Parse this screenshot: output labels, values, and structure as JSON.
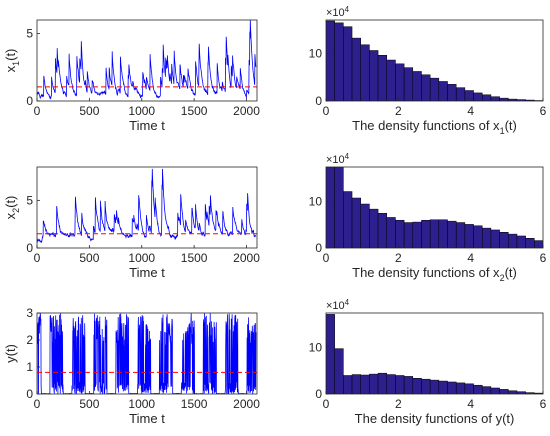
{
  "chart_data": [
    {
      "type": "line",
      "xlabel": "Time t",
      "ylabel": "x",
      "ylabel_sub": "1",
      "ylabel_suffix": "(t)",
      "xlim": [
        0,
        2100
      ],
      "ylim": [
        0,
        6
      ],
      "xticks": [
        "0",
        "500",
        "1000",
        "1500",
        "2000"
      ],
      "xtick_values": [
        0,
        500,
        1000,
        1500,
        2000
      ],
      "yticks": [
        "0",
        "5"
      ],
      "ytick_values": [
        0,
        5
      ],
      "series": [
        {
          "color": "#0000ff",
          "kind": "noisy-path",
          "mean": 1.2,
          "peak": 6,
          "seed": 11,
          "clip_top": true
        },
        {
          "color": "#ff0000",
          "kind": "hline",
          "y": 1.05,
          "dash": true
        }
      ]
    },
    {
      "type": "bar",
      "title": "×10",
      "title_exp": "4",
      "xlabel": "The density functions of x",
      "xlabel_sub": "1",
      "xlabel_suffix": "(t)",
      "xlim": [
        0,
        6
      ],
      "ylim": [
        0,
        17
      ],
      "xticks": [
        "0",
        "2",
        "4",
        "6"
      ],
      "xtick_values": [
        0,
        2,
        4,
        6
      ],
      "yticks": [
        "0",
        "10"
      ],
      "ytick_values": [
        0,
        10
      ],
      "bin_width": 0.24,
      "fill": "#2e1f8f",
      "values": [
        16.8,
        16.4,
        15.6,
        13.2,
        11.8,
        10.6,
        9.6,
        8.6,
        7.8,
        7.0,
        6.2,
        5.5,
        4.8,
        4.1,
        3.5,
        2.8,
        2.2,
        1.7,
        1.3,
        0.9,
        0.6,
        0.4,
        0.3,
        0.2,
        0.1
      ]
    },
    {
      "type": "line",
      "xlabel": "Time t",
      "ylabel": "x",
      "ylabel_sub": "2",
      "ylabel_suffix": "(t)",
      "xlim": [
        0,
        2100
      ],
      "ylim": [
        0,
        8.5
      ],
      "xticks": [
        "0",
        "500",
        "1000",
        "1500",
        "2000"
      ],
      "xtick_values": [
        0,
        500,
        1000,
        1500,
        2000
      ],
      "yticks": [
        "0",
        "5"
      ],
      "ytick_values": [
        0,
        5
      ],
      "series": [
        {
          "color": "#0000ff",
          "kind": "noisy-path",
          "mean": 2.0,
          "peak": 8.3,
          "seed": 23,
          "clip_top": false
        },
        {
          "color": "#ff0000",
          "kind": "hline",
          "y": 1.5,
          "dash": true
        }
      ]
    },
    {
      "type": "bar",
      "title": "×10",
      "title_exp": "4",
      "xlabel": "The density functions of x",
      "xlabel_sub": "2",
      "xlabel_suffix": "(t)",
      "xlim": [
        0,
        6
      ],
      "ylim": [
        0,
        17.5
      ],
      "xticks": [
        "0",
        "2",
        "4",
        "6"
      ],
      "xtick_values": [
        0,
        2,
        4,
        6
      ],
      "yticks": [
        "0",
        "10"
      ],
      "ytick_values": [
        0,
        10
      ],
      "bin_width": 0.24,
      "fill": "#2e1f8f",
      "values": [
        17.5,
        17.5,
        12.2,
        10.8,
        9.5,
        8.4,
        7.5,
        6.6,
        6.0,
        5.5,
        5.6,
        6.0,
        6.1,
        6.1,
        5.8,
        5.5,
        5.1,
        4.8,
        4.3,
        3.9,
        3.4,
        3.0,
        2.6,
        2.1,
        1.6
      ]
    },
    {
      "type": "line",
      "xlabel": "Time t",
      "ylabel": "y(t)",
      "ylabel_sub": "",
      "ylabel_suffix": "",
      "xlim": [
        0,
        2100
      ],
      "ylim": [
        0,
        3
      ],
      "xticks": [
        "0",
        "500",
        "1000",
        "1500",
        "2000"
      ],
      "xtick_values": [
        0,
        500,
        1000,
        1500,
        2000
      ],
      "yticks": [
        "0",
        "1",
        "2",
        "3"
      ],
      "ytick_values": [
        0,
        1,
        2,
        3
      ],
      "series": [
        {
          "color": "#0000ff",
          "kind": "burst-path",
          "peak": 3,
          "seed": 37
        },
        {
          "color": "#ff0000",
          "kind": "hline",
          "y": 0.8,
          "dash": true
        }
      ]
    },
    {
      "type": "bar",
      "title": "×10",
      "title_exp": "4",
      "xlabel": "The density functions of y(t)",
      "xlabel_sub": "",
      "xlabel_suffix": "",
      "xlim": [
        0,
        6
      ],
      "ylim": [
        0,
        17.5
      ],
      "xticks": [
        "0",
        "2",
        "4",
        "6"
      ],
      "xtick_values": [
        0,
        2,
        4,
        6
      ],
      "yticks": [
        "0",
        "10"
      ],
      "ytick_values": [
        0,
        10
      ],
      "bin_width": 0.24,
      "fill": "#2e1f8f",
      "values": [
        17.2,
        9.8,
        4.0,
        4.2,
        4.1,
        4.3,
        4.5,
        4.2,
        4.0,
        3.8,
        3.4,
        3.2,
        3.0,
        2.8,
        2.6,
        2.4,
        2.2,
        1.9,
        1.6,
        1.3,
        1.0,
        0.7,
        0.5,
        0.3,
        0.2
      ]
    }
  ]
}
